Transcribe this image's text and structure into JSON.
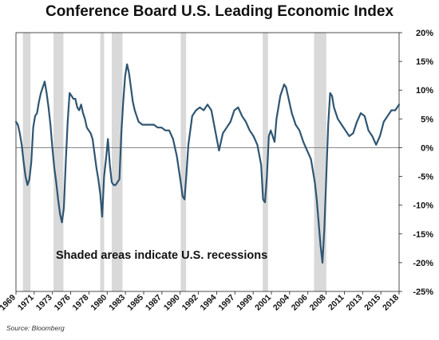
{
  "chart_data": {
    "type": "line",
    "title": "Conference Board U.S. Leading Economic Index",
    "annotation": "Shaded areas indicate U.S. recessions",
    "source": "Source: Bloomberg",
    "xlabel": "",
    "ylabel": "",
    "xlim": [
      1969,
      2019
    ],
    "ylim": [
      -25,
      20
    ],
    "y_ticks": [
      20,
      15,
      10,
      5,
      0,
      -5,
      -10,
      -15,
      -20,
      -25
    ],
    "y_tick_labels": [
      "20%",
      "15%",
      "10%",
      "5%",
      "0%",
      "-5%",
      "-10%",
      "-15%",
      "-20%",
      "-25%"
    ],
    "x_tick_labels": [
      "1969",
      "1971",
      "1973",
      "1976",
      "1978",
      "1980",
      "1983",
      "1985",
      "1987",
      "1990",
      "1992",
      "1994",
      "1997",
      "1999",
      "2001",
      "2004",
      "2006",
      "2008",
      "2011",
      "2013",
      "2015",
      "2018"
    ],
    "grid": false,
    "zero_line": true,
    "line_color": "#2f5572",
    "recession_color": "#d9d9d9",
    "recessions": [
      [
        1969.9,
        1970.9
      ],
      [
        1973.9,
        1975.2
      ],
      [
        1980.0,
        1980.5
      ],
      [
        1981.5,
        1982.9
      ],
      [
        1990.5,
        1991.2
      ],
      [
        2001.2,
        2001.9
      ],
      [
        2007.9,
        2009.5
      ]
    ],
    "series": [
      {
        "x": [
          1969.0,
          1969.25,
          1969.5,
          1969.75,
          1970.0,
          1970.25,
          1970.5,
          1970.75,
          1971.0,
          1971.25,
          1971.5,
          1971.75,
          1972.0,
          1972.25,
          1972.5,
          1972.75,
          1973.0,
          1973.25,
          1973.5,
          1973.75,
          1974.0,
          1974.25,
          1974.5,
          1974.75,
          1975.0,
          1975.25,
          1975.5,
          1975.75,
          1976.0,
          1976.25,
          1976.5,
          1976.75,
          1977.0,
          1977.25,
          1977.5,
          1977.75,
          1978.0,
          1978.25,
          1978.5,
          1978.75,
          1979.0,
          1979.25,
          1979.5,
          1979.75,
          1980.0,
          1980.25,
          1980.5,
          1980.75,
          1981.0,
          1981.25,
          1981.5,
          1981.75,
          1982.0,
          1982.25,
          1982.5,
          1982.75,
          1983.0,
          1983.25,
          1983.5,
          1983.75,
          1984.0,
          1984.25,
          1984.5,
          1984.75,
          1985.0,
          1985.5,
          1986.0,
          1986.5,
          1987.0,
          1987.5,
          1988.0,
          1988.5,
          1989.0,
          1989.5,
          1990.0,
          1990.5,
          1990.75,
          1991.0,
          1991.25,
          1991.5,
          1991.75,
          1992.0,
          1992.5,
          1993.0,
          1993.5,
          1994.0,
          1994.5,
          1995.0,
          1995.5,
          1996.0,
          1996.5,
          1997.0,
          1997.5,
          1998.0,
          1998.5,
          1999.0,
          1999.5,
          2000.0,
          2000.5,
          2001.0,
          2001.25,
          2001.5,
          2001.75,
          2002.0,
          2002.25,
          2002.5,
          2002.75,
          2003.0,
          2003.5,
          2004.0,
          2004.25,
          2004.5,
          2005.0,
          2005.5,
          2006.0,
          2006.5,
          2007.0,
          2007.5,
          2008.0,
          2008.25,
          2008.5,
          2008.75,
          2009.0,
          2009.25,
          2009.5,
          2009.75,
          2010.0,
          2010.25,
          2010.5,
          2010.75,
          2011.0,
          2011.5,
          2012.0,
          2012.5,
          2013.0,
          2013.5,
          2014.0,
          2014.5,
          2015.0,
          2015.5,
          2016.0,
          2016.5,
          2017.0,
          2017.5,
          2018.0,
          2018.5,
          2019.0
        ],
        "values": [
          4.5,
          4.0,
          2.5,
          0.5,
          -2.5,
          -5.0,
          -6.5,
          -5.5,
          -2.5,
          3.5,
          5.5,
          6.0,
          8.0,
          9.5,
          10.5,
          11.5,
          9.5,
          7.0,
          4.0,
          0.0,
          -3.5,
          -6.0,
          -9.0,
          -11.5,
          -13.0,
          -10.5,
          -2.5,
          4.5,
          9.5,
          9.0,
          8.5,
          8.5,
          7.0,
          6.5,
          7.5,
          6.0,
          5.0,
          3.5,
          3.0,
          2.5,
          1.5,
          -1.0,
          -3.5,
          -5.5,
          -8.0,
          -12.0,
          -5.0,
          -2.0,
          1.5,
          -3.0,
          -6.0,
          -6.5,
          -6.5,
          -6.0,
          -5.5,
          2.5,
          8.0,
          12.5,
          14.5,
          13.0,
          10.5,
          8.0,
          6.5,
          5.5,
          4.5,
          4.0,
          4.0,
          4.0,
          4.0,
          3.5,
          3.5,
          3.0,
          3.0,
          1.5,
          -1.5,
          -6.0,
          -8.5,
          -9.0,
          -4.5,
          0.5,
          3.0,
          5.5,
          6.5,
          7.0,
          6.5,
          7.5,
          6.5,
          3.0,
          -0.5,
          2.5,
          3.5,
          4.5,
          6.5,
          7.0,
          5.5,
          4.5,
          3.0,
          2.0,
          0.5,
          -3.0,
          -9.0,
          -9.5,
          -5.0,
          2.0,
          3.0,
          2.0,
          1.0,
          5.0,
          9.0,
          11.0,
          10.5,
          9.0,
          6.0,
          4.0,
          3.0,
          1.0,
          -0.5,
          -2.0,
          -6.0,
          -9.0,
          -13.0,
          -17.0,
          -20.0,
          -14.0,
          -5.0,
          4.0,
          9.5,
          9.0,
          7.0,
          6.0,
          5.0,
          4.0,
          3.0,
          2.0,
          2.5,
          4.5,
          6.0,
          5.5,
          3.0,
          2.0,
          0.5,
          2.0,
          4.5,
          5.5,
          6.5,
          6.5,
          7.5
        ]
      }
    ]
  }
}
